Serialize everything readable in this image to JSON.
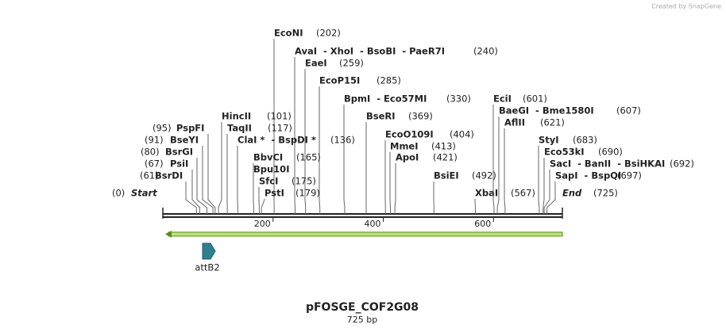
{
  "credit": "Created by SnapGene",
  "map": {
    "start": {
      "name": "Start",
      "position": {
        "value": 0,
        "label": "(0)"
      }
    },
    "end": {
      "name": "End",
      "position": {
        "value": 725,
        "label": "(725)"
      }
    },
    "ticks": [
      200,
      400,
      600
    ],
    "sites": [
      {
        "name": "EcoNI",
        "position": {
          "value": 202,
          "label": "(202)"
        }
      },
      {
        "name": "AvaI  - XhoI  - BsoBI  - PaeR7I",
        "position": {
          "value": 240,
          "label": "(240)"
        }
      },
      {
        "name": "EaeI",
        "position": {
          "value": 259,
          "label": "(259)"
        }
      },
      {
        "name": "EcoP15I",
        "position": {
          "value": 285,
          "label": "(285)"
        }
      },
      {
        "name": "BpmI  - Eco57MI",
        "position": {
          "value": 330,
          "label": "(330)"
        }
      },
      {
        "name": "HincII",
        "position": {
          "value": 101,
          "label": "(101)"
        }
      },
      {
        "name": "BseRI",
        "position": {
          "value": 369,
          "label": "(369)"
        }
      },
      {
        "name": "TaqII",
        "position": {
          "value": 117,
          "label": "(117)"
        }
      },
      {
        "name": "PspFI",
        "position": {
          "value": 95,
          "label": "(95)"
        }
      },
      {
        "name": "ClaI *  - BspDI *",
        "position": {
          "value": 136,
          "label": "(136)"
        }
      },
      {
        "name": "BseYI",
        "position": {
          "value": 91,
          "label": "(91)"
        }
      },
      {
        "name": "EcoO109I",
        "position": {
          "value": 404,
          "label": "(404)"
        }
      },
      {
        "name": "BsrGI",
        "position": {
          "value": 80,
          "label": "(80)"
        }
      },
      {
        "name": "MmeI",
        "position": {
          "value": 413,
          "label": "(413)"
        }
      },
      {
        "name": "BbvCI",
        "position": {
          "value": 165,
          "label": "(165)"
        }
      },
      {
        "name": "ApoI",
        "position": {
          "value": 421,
          "label": "(421)"
        }
      },
      {
        "name": "PsiI",
        "position": {
          "value": 67,
          "label": "(67)"
        }
      },
      {
        "name": "Bpu10I"
      },
      {
        "name": "BsrDI",
        "position": {
          "value": 61,
          "label": "(61)"
        }
      },
      {
        "name": "BsiEI",
        "position": {
          "value": 492,
          "label": "(492)"
        }
      },
      {
        "name": "SfcI",
        "position": {
          "value": 175,
          "label": "(175)"
        }
      },
      {
        "name": "PstI",
        "position": {
          "value": 179,
          "label": "(179)"
        }
      },
      {
        "name": "XbaI",
        "position": {
          "value": 567,
          "label": "(567)"
        }
      },
      {
        "name": "EciI",
        "position": {
          "value": 601,
          "label": "(601)"
        }
      },
      {
        "name": "BaeGI  - Bme1580I",
        "position": {
          "value": 607,
          "label": "(607)"
        }
      },
      {
        "name": "AflII",
        "position": {
          "value": 621,
          "label": "(621)"
        }
      },
      {
        "name": "StyI",
        "position": {
          "value": 683,
          "label": "(683)"
        }
      },
      {
        "name": "Eco53kI",
        "position": {
          "value": 690,
          "label": "(690)"
        }
      },
      {
        "name": "SacI  - BanII  - BsiHKAI",
        "position": {
          "value": 692,
          "label": "(692)"
        }
      },
      {
        "name": "SapI  - BspQI",
        "position": {
          "value": 697,
          "label": "(697)"
        }
      }
    ],
    "feature": "attB2"
  },
  "title": "pFOSGE_COF2G08",
  "subtitle": "725 bp"
}
